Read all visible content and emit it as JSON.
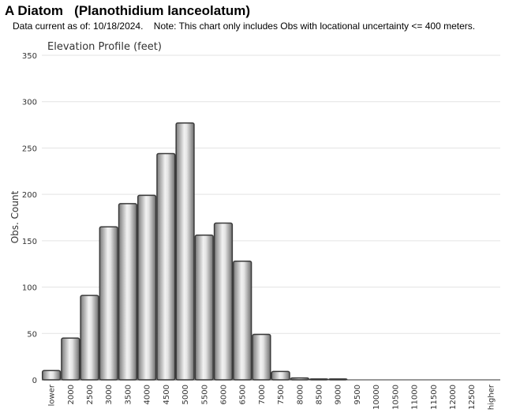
{
  "header": {
    "title": "A Diatom   (Planothidium lanceolatum)",
    "note": "Data current as of: 10/18/2024.    Note: This chart only includes Obs with locational uncertainty <= 400 meters."
  },
  "chart_data": {
    "type": "bar",
    "title": "Elevation Profile (feet)",
    "xlabel": "",
    "ylabel": "Obs. Count",
    "ylim": [
      0,
      350
    ],
    "yticks": [
      0,
      50,
      100,
      150,
      200,
      250,
      300,
      350
    ],
    "grid": true,
    "categories": [
      "lower",
      "2000",
      "2500",
      "3000",
      "3500",
      "4000",
      "4500",
      "5000",
      "5500",
      "6000",
      "6500",
      "7000",
      "7500",
      "8000",
      "8500",
      "9000",
      "9500",
      "10000",
      "10500",
      "11000",
      "11500",
      "12000",
      "12500",
      "higher"
    ],
    "values": [
      10,
      45,
      91,
      165,
      190,
      199,
      244,
      277,
      156,
      169,
      128,
      49,
      9,
      2,
      1,
      1,
      0,
      0,
      0,
      0,
      0,
      0,
      0,
      0
    ],
    "bar_color": "#a8a8a8"
  }
}
